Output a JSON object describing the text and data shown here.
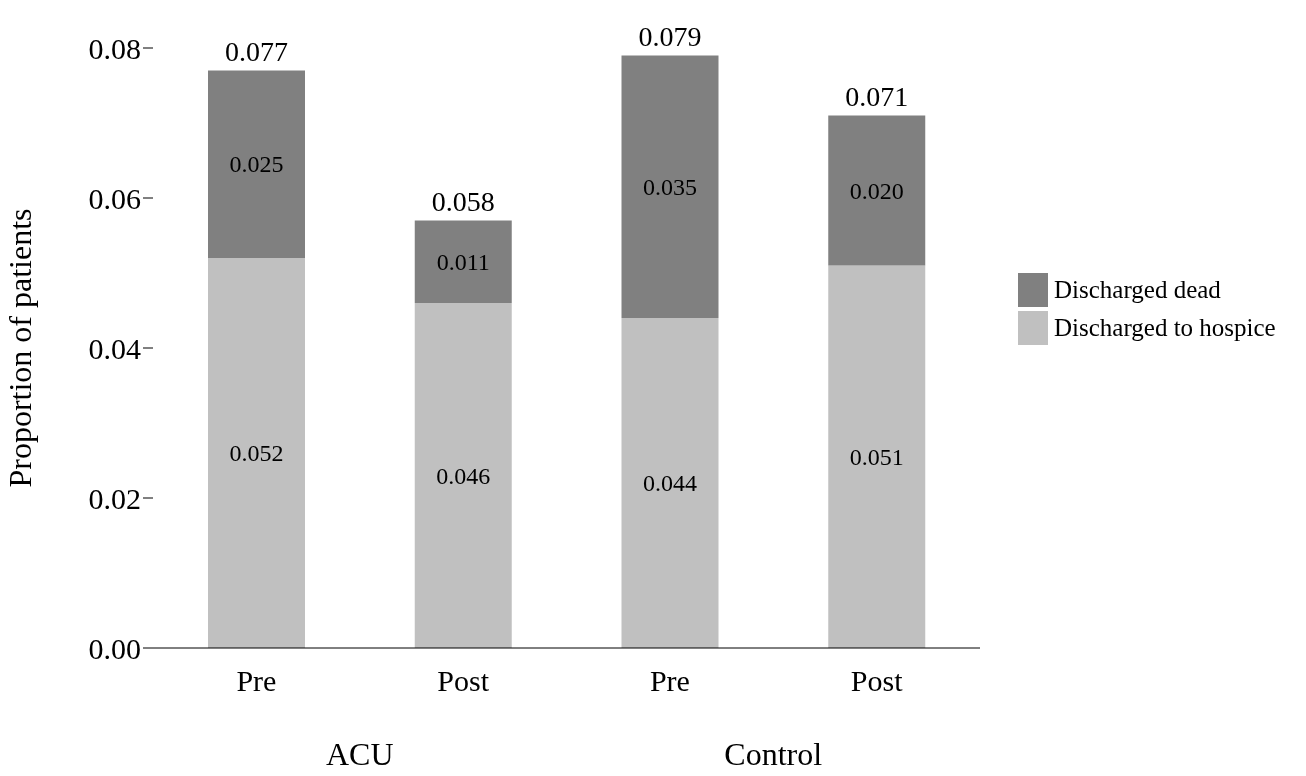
{
  "chart_data": {
    "type": "bar",
    "stacked": true,
    "ylabel": "Proportion of patients",
    "categories": [
      "Pre",
      "Post",
      "Pre",
      "Post"
    ],
    "series": [
      {
        "name": "Discharged to hospice",
        "color": "#c0c0c0",
        "values": [
          0.052,
          0.046,
          0.044,
          0.051
        ],
        "value_labels": [
          "0.052",
          "0.046",
          "0.044",
          "0.051"
        ]
      },
      {
        "name": "Discharged dead",
        "color": "#808080",
        "values": [
          0.025,
          0.011,
          0.035,
          0.02
        ],
        "value_labels": [
          "0.025",
          "0.011",
          "0.035",
          "0.020"
        ]
      }
    ],
    "totals": [
      "0.077",
      "0.058",
      "0.079",
      "0.071"
    ],
    "annotations": [
      "ACU",
      "Control"
    ],
    "ylim": [
      0,
      0.08
    ],
    "yticks": [
      {
        "value": 0,
        "label": "0.00"
      },
      {
        "value": 0.02,
        "label": "0.02"
      },
      {
        "value": 0.04,
        "label": "0.04"
      },
      {
        "value": 0.06,
        "label": "0.06"
      },
      {
        "value": 0.08,
        "label": "0.08"
      }
    ],
    "grid": false,
    "legend": "right"
  }
}
